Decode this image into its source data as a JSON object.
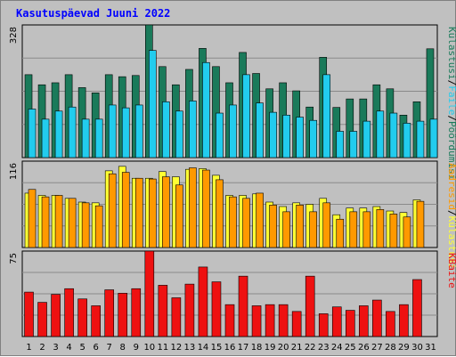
{
  "chart_data": {
    "type": "bar",
    "title": "Kasutuspäevad Juuni 2022",
    "categories": [
      "1",
      "2",
      "3",
      "4",
      "5",
      "6",
      "7",
      "8",
      "9",
      "10",
      "11",
      "12",
      "13",
      "14",
      "15",
      "16",
      "17",
      "18",
      "19",
      "20",
      "21",
      "22",
      "23",
      "24",
      "25",
      "26",
      "27",
      "28",
      "29",
      "30",
      "31"
    ],
    "weekend_days": [
      "4",
      "5",
      "11",
      "12",
      "18",
      "19",
      "25",
      "26"
    ],
    "panels": [
      {
        "name": "top",
        "ymax_label": "328",
        "ylim": [
          0,
          328
        ],
        "series": [
          {
            "name": "Külastusi",
            "color": "#1a7a5a",
            "values": [
              205,
              180,
              185,
              205,
              173,
              160,
              205,
              200,
              203,
              328,
              225,
              180,
              218,
              270,
              225,
              185,
              260,
              208,
              170,
              185,
              165,
              125,
              248,
              124,
              145,
              145,
              180,
              170,
              105,
              138,
              269
            ]
          },
          {
            "name": "Faile",
            "color": "#22ccee",
            "values": [
              120,
              95,
              115,
              125,
              95,
              95,
              130,
              123,
              130,
              265,
              138,
              115,
              140,
              235,
              110,
              130,
              205,
              135,
              112,
              105,
              100,
              92,
              205,
              65,
              65,
              90,
              115,
              110,
              85,
              90,
              95
            ]
          }
        ],
        "side_labels": [
          {
            "text": "Külastusi",
            "color": "#1a7a5a"
          },
          {
            "text": "/",
            "color": "#000000"
          },
          {
            "text": "Faile",
            "color": "#22ccee"
          },
          {
            "text": "/",
            "color": "#000000"
          },
          {
            "text": "Pöördumisi",
            "color": "#1a7a5a"
          }
        ]
      },
      {
        "name": "middle",
        "ymax_label": "116",
        "ylim": [
          0,
          116
        ],
        "series": [
          {
            "name": "Külastusi",
            "color": "#ffff33",
            "values": [
              73,
              70,
              70,
              66,
              61,
              60,
              103,
              109,
              93,
              93,
              102,
              95,
              105,
              106,
              97,
              70,
              70,
              72,
              61,
              55,
              60,
              58,
              66,
              44,
              53,
              53,
              55,
              49,
              47,
              64,
              0
            ]
          },
          {
            "name": "Aadressid",
            "color": "#ff9900",
            "values": [
              78,
              68,
              70,
              66,
              60,
              56,
              99,
              101,
              93,
              92,
              95,
              84,
              107,
              104,
              91,
              68,
              66,
              73,
              57,
              48,
              57,
              48,
              60,
              38,
              48,
              48,
              51,
              45,
              41,
              62,
              0
            ]
          }
        ],
        "side_labels": [
          {
            "text": "Aadresid",
            "color": "#ff9900"
          },
          {
            "text": "/",
            "color": "#000000"
          },
          {
            "text": "Külastusi",
            "color": "#ffff33"
          }
        ]
      },
      {
        "name": "bottom",
        "ymax_label": "75",
        "ylim": [
          0,
          75
        ],
        "series": [
          {
            "name": "KBaite",
            "color": "#ee1111",
            "values": [
              39,
              30,
              37,
              42,
              33,
              27,
              41,
              38,
              42,
              75,
              45,
              34,
              46,
              61,
              48,
              28,
              53,
              27,
              28,
              28,
              22,
              53,
              20,
              26,
              23,
              27,
              32,
              22,
              28,
              50,
              0
            ]
          }
        ],
        "side_labels": [
          {
            "text": "KBaite",
            "color": "#ee1111"
          }
        ]
      }
    ]
  }
}
